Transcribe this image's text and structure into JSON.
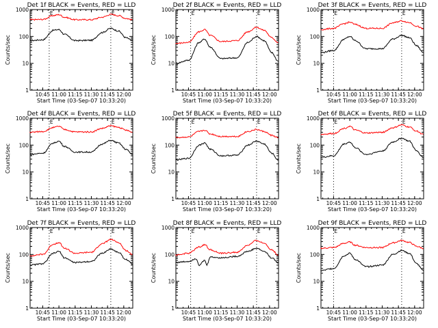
{
  "chart_data": [
    {
      "type": "line",
      "title": "Det 1f BLACK = Events, RED = LLD",
      "xlabel": "Start Time (03-Sep-07 10:33:20)",
      "ylabel": "Counts/sec",
      "y_scale": "log",
      "ylim": [
        1,
        1000
      ],
      "y_ticks": [
        1,
        10,
        100,
        1000
      ],
      "xlim": [
        "10:33:20",
        "12:08:20"
      ],
      "x_ticks": [
        "10:45",
        "11:00",
        "11:15",
        "11:30",
        "11:45",
        "12:00"
      ],
      "markers": [
        {
          "time": "10:51",
          "label": "E"
        },
        {
          "time": "11:48",
          "label": "E"
        }
      ],
      "series": [
        {
          "color": "#000000",
          "x": [
            "10:33",
            "10:45",
            "10:55",
            "11:00",
            "11:05",
            "11:15",
            "11:30",
            "11:40",
            "11:48",
            "11:55",
            "12:02",
            "12:08"
          ],
          "values": [
            70,
            75,
            170,
            180,
            120,
            70,
            72,
            140,
            200,
            160,
            90,
            70
          ]
        },
        {
          "color": "#ff0000",
          "x": [
            "10:33",
            "10:45",
            "10:55",
            "11:00",
            "11:05",
            "11:15",
            "11:30",
            "11:40",
            "11:48",
            "11:55",
            "12:02",
            "12:08"
          ],
          "values": [
            420,
            430,
            600,
            650,
            520,
            420,
            420,
            520,
            660,
            600,
            470,
            420
          ]
        }
      ]
    },
    {
      "type": "line",
      "title": "Det 2f BLACK = Events, RED = LLD",
      "xlabel": "Start Time (03-Sep-07 10:33:20)",
      "ylabel": "Counts/sec",
      "y_scale": "log",
      "ylim": [
        1,
        1000
      ],
      "y_ticks": [
        1,
        10,
        100,
        1000
      ],
      "xlim": [
        "10:33:20",
        "12:08:20"
      ],
      "x_ticks": [
        "10:45",
        "11:00",
        "11:15",
        "11:30",
        "11:45",
        "12:00"
      ],
      "markers": [
        {
          "time": "10:47",
          "label": "E"
        },
        {
          "time": "11:48",
          "label": "E"
        }
      ],
      "series": [
        {
          "color": "#000000",
          "x": [
            "10:33",
            "10:45",
            "10:55",
            "11:00",
            "11:05",
            "11:15",
            "11:30",
            "11:40",
            "11:48",
            "11:55",
            "12:02",
            "12:08"
          ],
          "values": [
            10,
            13,
            60,
            80,
            40,
            15,
            16,
            60,
            100,
            70,
            25,
            12
          ]
        },
        {
          "color": "#ff0000",
          "x": [
            "10:33",
            "10:45",
            "10:55",
            "11:00",
            "11:05",
            "11:15",
            "11:30",
            "11:40",
            "11:48",
            "11:55",
            "12:02",
            "12:08"
          ],
          "values": [
            55,
            60,
            150,
            180,
            110,
            65,
            70,
            150,
            220,
            170,
            90,
            60
          ]
        }
      ]
    },
    {
      "type": "line",
      "title": "Det 3f BLACK = Events, RED = LLD",
      "xlabel": "Start Time (03-Sep-07 10:33:20)",
      "ylabel": "Counts/sec",
      "y_scale": "log",
      "ylim": [
        1,
        1000
      ],
      "y_ticks": [
        1,
        10,
        100,
        1000
      ],
      "xlim": [
        "10:33:20",
        "12:08:20"
      ],
      "x_ticks": [
        "10:45",
        "11:00",
        "11:15",
        "11:30",
        "11:45",
        "12:00"
      ],
      "markers": [
        {
          "time": "10:45",
          "label": "E"
        },
        {
          "time": "11:48",
          "label": "E"
        }
      ],
      "series": [
        {
          "color": "#000000",
          "x": [
            "10:33",
            "10:45",
            "10:55",
            "11:00",
            "11:05",
            "11:15",
            "11:30",
            "11:40",
            "11:48",
            "11:55",
            "12:02",
            "12:08"
          ],
          "values": [
            25,
            30,
            80,
            100,
            70,
            35,
            35,
            80,
            110,
            90,
            45,
            25
          ]
        },
        {
          "color": "#ff0000",
          "x": [
            "10:33",
            "10:45",
            "10:55",
            "11:00",
            "11:05",
            "11:15",
            "11:30",
            "11:40",
            "11:48",
            "11:55",
            "12:02",
            "12:08"
          ],
          "values": [
            180,
            200,
            300,
            340,
            280,
            200,
            200,
            320,
            380,
            330,
            240,
            190
          ]
        }
      ]
    },
    {
      "type": "line",
      "title": "Det 4f BLACK = Events, RED = LLD",
      "xlabel": "Start Time (03-Sep-07 10:33:20)",
      "ylabel": "Counts/sec",
      "y_scale": "log",
      "ylim": [
        1,
        1000
      ],
      "y_ticks": [
        1,
        10,
        100,
        1000
      ],
      "xlim": [
        "10:33:20",
        "12:08:20"
      ],
      "x_ticks": [
        "10:45",
        "11:00",
        "11:15",
        "11:30",
        "11:45",
        "12:00"
      ],
      "markers": [
        {
          "time": "10:51",
          "label": "E"
        },
        {
          "time": "11:48",
          "label": "E"
        }
      ],
      "series": [
        {
          "color": "#000000",
          "x": [
            "10:33",
            "10:45",
            "10:55",
            "11:00",
            "11:05",
            "11:15",
            "11:30",
            "11:40",
            "11:48",
            "11:55",
            "12:02",
            "12:08"
          ],
          "values": [
            45,
            50,
            120,
            140,
            90,
            55,
            55,
            110,
            150,
            120,
            70,
            45
          ]
        },
        {
          "color": "#ff0000",
          "x": [
            "10:33",
            "10:45",
            "10:55",
            "11:00",
            "11:05",
            "11:15",
            "11:30",
            "11:40",
            "11:48",
            "11:55",
            "12:02",
            "12:08"
          ],
          "values": [
            300,
            320,
            450,
            500,
            380,
            310,
            310,
            420,
            520,
            460,
            360,
            300
          ]
        }
      ]
    },
    {
      "type": "line",
      "title": "Det 5f BLACK = Events, RED = LLD",
      "xlabel": "Start Time (03-Sep-07 10:33:20)",
      "ylabel": "Counts/sec",
      "y_scale": "log",
      "ylim": [
        1,
        1000
      ],
      "y_ticks": [
        1,
        10,
        100,
        1000
      ],
      "xlim": [
        "10:33:20",
        "12:08:20"
      ],
      "x_ticks": [
        "10:45",
        "11:00",
        "11:15",
        "11:30",
        "11:45",
        "12:00"
      ],
      "markers": [
        {
          "time": "10:47",
          "label": "E"
        },
        {
          "time": "11:48",
          "label": "E"
        }
      ],
      "series": [
        {
          "color": "#000000",
          "x": [
            "10:33",
            "10:45",
            "10:55",
            "11:00",
            "11:05",
            "11:15",
            "11:30",
            "11:40",
            "11:48",
            "11:55",
            "12:02",
            "12:08"
          ],
          "values": [
            28,
            32,
            100,
            120,
            70,
            40,
            42,
            100,
            140,
            110,
            50,
            28
          ]
        },
        {
          "color": "#ff0000",
          "x": [
            "10:33",
            "10:45",
            "10:55",
            "11:00",
            "11:05",
            "11:15",
            "11:30",
            "11:40",
            "11:48",
            "11:55",
            "12:02",
            "12:08"
          ],
          "values": [
            190,
            200,
            320,
            360,
            260,
            210,
            210,
            320,
            380,
            320,
            230,
            190
          ]
        }
      ]
    },
    {
      "type": "line",
      "title": "Det 6f BLACK = Events, RED = LLD",
      "xlabel": "Start Time (03-Sep-07 10:33:20)",
      "ylabel": "Counts/sec",
      "y_scale": "log",
      "ylim": [
        1,
        1000
      ],
      "y_ticks": [
        1,
        10,
        100,
        1000
      ],
      "xlim": [
        "10:33:20",
        "12:08:20"
      ],
      "x_ticks": [
        "10:45",
        "11:00",
        "11:15",
        "11:30",
        "11:45",
        "12:00"
      ],
      "markers": [
        {
          "time": "10:45",
          "label": "E"
        },
        {
          "time": "11:48",
          "label": "E"
        }
      ],
      "series": [
        {
          "color": "#000000",
          "x": [
            "10:33",
            "10:45",
            "10:55",
            "11:00",
            "11:05",
            "11:15",
            "11:30",
            "11:40",
            "11:48",
            "11:55",
            "12:02",
            "12:08"
          ],
          "values": [
            35,
            40,
            110,
            130,
            80,
            45,
            60,
            130,
            180,
            140,
            60,
            35
          ]
        },
        {
          "color": "#ff0000",
          "x": [
            "10:33",
            "10:45",
            "10:55",
            "11:00",
            "11:05",
            "11:15",
            "11:30",
            "11:40",
            "11:48",
            "11:55",
            "12:02",
            "12:08"
          ],
          "values": [
            250,
            270,
            420,
            500,
            360,
            280,
            300,
            440,
            560,
            470,
            330,
            250
          ]
        }
      ]
    },
    {
      "type": "line",
      "title": "Det 7f BLACK = Events, RED = LLD",
      "xlabel": "Start Time (03-Sep-07 10:33:20)",
      "ylabel": "Counts/sec",
      "y_scale": "log",
      "ylim": [
        1,
        1000
      ],
      "y_ticks": [
        1,
        10,
        100,
        1000
      ],
      "xlim": [
        "10:33:20",
        "12:08:20"
      ],
      "x_ticks": [
        "10:45",
        "11:00",
        "11:15",
        "11:30",
        "11:45",
        "12:00"
      ],
      "markers": [
        {
          "time": "10:51",
          "label": "E"
        },
        {
          "time": "11:48",
          "label": "E"
        }
      ],
      "series": [
        {
          "color": "#000000",
          "x": [
            "10:33",
            "10:45",
            "10:55",
            "11:00",
            "11:05",
            "11:15",
            "11:30",
            "11:40",
            "11:48",
            "11:55",
            "12:02",
            "12:08"
          ],
          "values": [
            40,
            45,
            110,
            130,
            75,
            50,
            55,
            110,
            160,
            120,
            65,
            45
          ]
        },
        {
          "color": "#ff0000",
          "x": [
            "10:33",
            "10:45",
            "10:55",
            "11:00",
            "11:05",
            "11:15",
            "11:30",
            "11:40",
            "11:48",
            "11:55",
            "12:02",
            "12:08"
          ],
          "values": [
            90,
            100,
            240,
            280,
            170,
            110,
            120,
            250,
            360,
            280,
            140,
            100
          ]
        }
      ]
    },
    {
      "type": "line",
      "title": "Det 8f BLACK = Events, RED = LLD",
      "xlabel": "Start Time (03-Sep-07 10:33:20)",
      "ylabel": "Counts/sec",
      "y_scale": "log",
      "ylim": [
        1,
        1000
      ],
      "y_ticks": [
        1,
        10,
        100,
        1000
      ],
      "xlim": [
        "10:33:20",
        "12:08:20"
      ],
      "x_ticks": [
        "10:45",
        "11:00",
        "11:15",
        "11:30",
        "11:45",
        "12:00"
      ],
      "markers": [
        {
          "time": "10:47",
          "label": "E"
        },
        {
          "time": "11:48",
          "label": "E"
        }
      ],
      "series": [
        {
          "color": "#000000",
          "x": [
            "10:33",
            "10:45",
            "10:52",
            "10:55",
            "11:00",
            "11:02",
            "11:05",
            "11:15",
            "11:30",
            "11:40",
            "11:48",
            "11:55",
            "12:02",
            "12:08"
          ],
          "values": [
            50,
            55,
            70,
            40,
            60,
            40,
            80,
            75,
            85,
            130,
            170,
            130,
            75,
            50
          ]
        },
        {
          "color": "#ff0000",
          "x": [
            "10:33",
            "10:45",
            "10:55",
            "11:00",
            "11:05",
            "11:15",
            "11:30",
            "11:40",
            "11:48",
            "11:55",
            "12:02",
            "12:08"
          ],
          "values": [
            95,
            110,
            190,
            230,
            150,
            110,
            120,
            220,
            330,
            260,
            150,
            95
          ]
        }
      ]
    },
    {
      "type": "line",
      "title": "Det 9f BLACK = Events, RED = LLD",
      "xlabel": "Start Time (03-Sep-07 10:33:20)",
      "ylabel": "Counts/sec",
      "y_scale": "log",
      "ylim": [
        1,
        1000
      ],
      "y_ticks": [
        1,
        10,
        100,
        1000
      ],
      "xlim": [
        "10:33:20",
        "12:08:20"
      ],
      "x_ticks": [
        "10:45",
        "11:00",
        "11:15",
        "11:30",
        "11:45",
        "12:00"
      ],
      "markers": [
        {
          "time": "10:45",
          "label": "E"
        },
        {
          "time": "11:48",
          "label": "E"
        }
      ],
      "series": [
        {
          "color": "#000000",
          "x": [
            "10:33",
            "10:45",
            "10:55",
            "11:00",
            "11:05",
            "11:15",
            "11:30",
            "11:40",
            "11:48",
            "11:55",
            "12:02",
            "12:08"
          ],
          "values": [
            25,
            30,
            90,
            110,
            65,
            35,
            40,
            100,
            140,
            110,
            45,
            25
          ]
        },
        {
          "color": "#ff0000",
          "x": [
            "10:33",
            "10:45",
            "10:55",
            "11:00",
            "11:05",
            "11:15",
            "11:30",
            "11:40",
            "11:48",
            "11:55",
            "12:02",
            "12:08"
          ],
          "values": [
            170,
            180,
            260,
            290,
            220,
            180,
            180,
            270,
            330,
            280,
            200,
            170
          ]
        }
      ]
    }
  ]
}
